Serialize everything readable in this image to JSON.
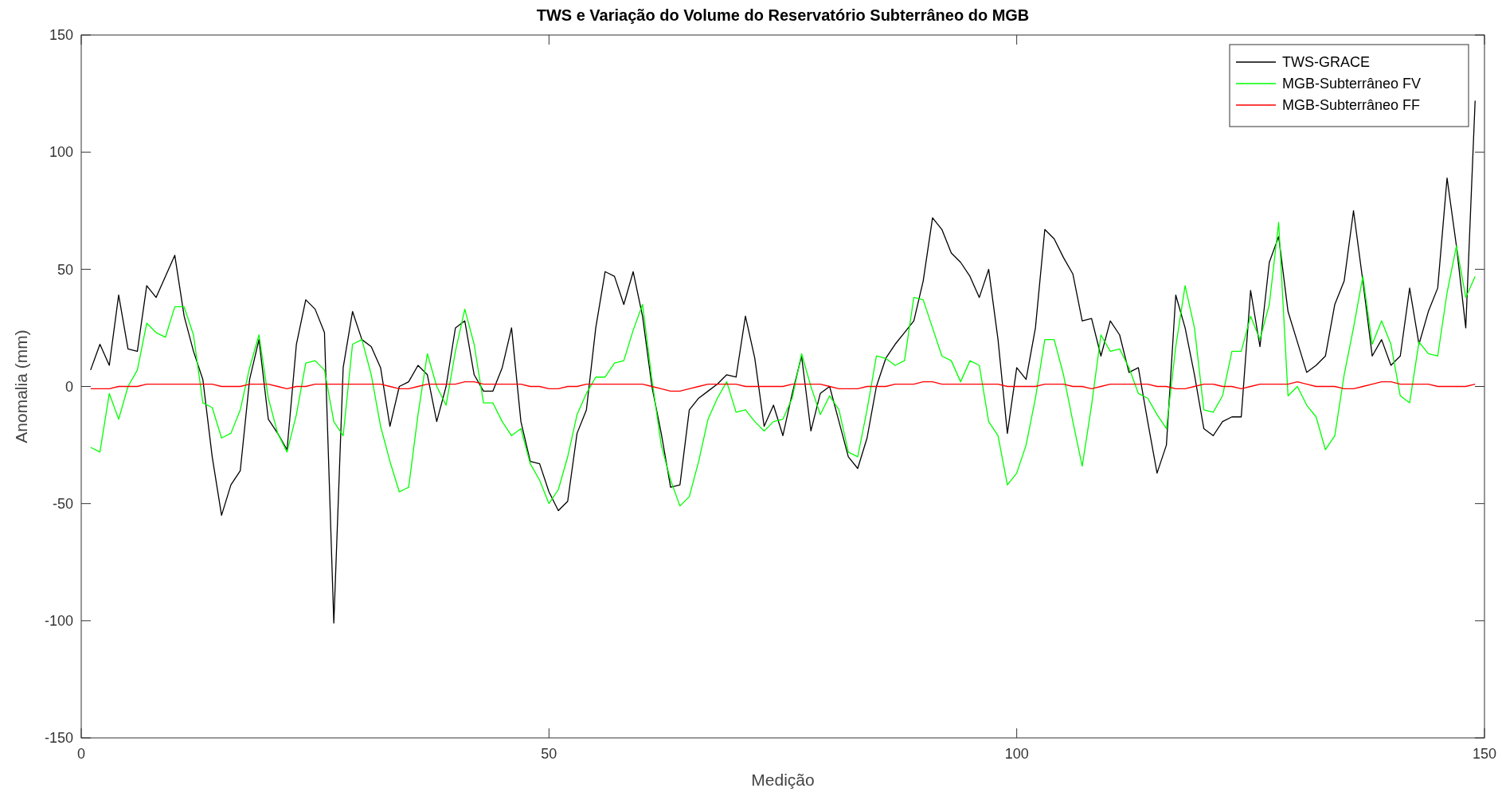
{
  "chart_data": {
    "type": "line",
    "title": "TWS e Variação do Volume do Reservatório Subterrâneo do MGB",
    "xlabel": "Medição",
    "ylabel": "Anomalia (mm)",
    "x": [
      1,
      2,
      3,
      4,
      5,
      6,
      7,
      8,
      9,
      10,
      11,
      12,
      13,
      14,
      15,
      16,
      17,
      18,
      19,
      20,
      21,
      22,
      23,
      24,
      25,
      26,
      27,
      28,
      29,
      30,
      31,
      32,
      33,
      34,
      35,
      36,
      37,
      38,
      39,
      40,
      41,
      42,
      43,
      44,
      45,
      46,
      47,
      48,
      49,
      50,
      51,
      52,
      53,
      54,
      55,
      56,
      57,
      58,
      59,
      60,
      61,
      62,
      63,
      64,
      65,
      66,
      67,
      68,
      69,
      70,
      71,
      72,
      73,
      74,
      75,
      76,
      77,
      78,
      79,
      80,
      81,
      82,
      83,
      84,
      85,
      86,
      87,
      88,
      89,
      90,
      91,
      92,
      93,
      94,
      95,
      96,
      97,
      98,
      99,
      100,
      101,
      102,
      103,
      104,
      105,
      106,
      107,
      108,
      109,
      110,
      111,
      112,
      113,
      114,
      115,
      116,
      117,
      118,
      119,
      120,
      121,
      122,
      123,
      124,
      125,
      126,
      127,
      128,
      129,
      130,
      131,
      132,
      133,
      134,
      135,
      136,
      137,
      138,
      139,
      140,
      141,
      142,
      143,
      144,
      145,
      146,
      147,
      148,
      149
    ],
    "series": [
      {
        "name": "TWS-GRACE",
        "color": "#000000",
        "values": [
          7,
          18,
          9,
          39,
          16,
          15,
          43,
          38,
          47,
          56,
          30,
          15,
          3,
          -30,
          -55,
          -42,
          -36,
          3,
          20,
          -14,
          -20,
          -27,
          18,
          37,
          33,
          23,
          -101,
          8,
          32,
          20,
          17,
          8,
          -17,
          0,
          2,
          9,
          5,
          -15,
          0,
          25,
          28,
          5,
          -2,
          -2,
          8,
          25,
          -15,
          -32,
          -33,
          -45,
          -53,
          -49,
          -20,
          -10,
          25,
          49,
          47,
          35,
          49,
          30,
          0,
          -20,
          -43,
          -42,
          -10,
          -5,
          -2,
          1,
          5,
          4,
          30,
          12,
          -17,
          -8,
          -21,
          -3,
          13,
          -19,
          -3,
          0,
          -15,
          -30,
          -35,
          -22,
          0,
          12,
          18,
          23,
          28,
          45,
          72,
          67,
          57,
          53,
          47,
          38,
          50,
          20,
          -20,
          8,
          3,
          25,
          67,
          63,
          55,
          48,
          28,
          29,
          13,
          28,
          22,
          6,
          8,
          -15,
          -37,
          -25,
          39,
          25,
          5,
          -18,
          -21,
          -15,
          -13,
          -13,
          41,
          17,
          53,
          64,
          32,
          19,
          6,
          9,
          13,
          35,
          45,
          75,
          45,
          13,
          20,
          9,
          13,
          42,
          18,
          32,
          42,
          89,
          60,
          25,
          122
        ]
      },
      {
        "name": "MGB-Subterrâneo FV",
        "color": "#00ff00",
        "values": [
          -26,
          -28,
          -3,
          -14,
          0,
          7,
          27,
          23,
          21,
          34,
          34,
          22,
          -7,
          -9,
          -22,
          -20,
          -10,
          8,
          22,
          -5,
          -20,
          -28,
          -12,
          10,
          11,
          7,
          -15,
          -21,
          18,
          20,
          5,
          -17,
          -32,
          -45,
          -43,
          -12,
          14,
          0,
          -8,
          15,
          33,
          18,
          -7,
          -7,
          -15,
          -21,
          -18,
          -33,
          -40,
          -50,
          -44,
          -30,
          -12,
          -3,
          4,
          4,
          10,
          11,
          24,
          35,
          3,
          -25,
          -40,
          -51,
          -47,
          -32,
          -14,
          -5,
          2,
          -11,
          -10,
          -15,
          -19,
          -15,
          -14,
          -5,
          14,
          0,
          -12,
          -4,
          -10,
          -28,
          -30,
          -10,
          13,
          12,
          9,
          11,
          38,
          37,
          25,
          13,
          11,
          2,
          11,
          9,
          -15,
          -21,
          -42,
          -37,
          -25,
          -5,
          20,
          20,
          5,
          -15,
          -34,
          -8,
          22,
          15,
          16,
          8,
          -3,
          -5,
          -12,
          -18,
          17,
          43,
          25,
          -10,
          -11,
          -4,
          15,
          15,
          30,
          20,
          35,
          70,
          -4,
          0,
          -8,
          -13,
          -27,
          -21,
          5,
          25,
          47,
          18,
          28,
          18,
          -4,
          -7,
          19,
          14,
          13,
          40,
          60,
          38,
          47
        ]
      },
      {
        "name": "MGB-Subterrâneo FF",
        "color": "#ff0000",
        "values": [
          -1,
          -1,
          -1,
          0,
          0,
          0,
          1,
          1,
          1,
          1,
          1,
          1,
          1,
          1,
          0,
          0,
          0,
          1,
          1,
          1,
          0,
          -1,
          0,
          0,
          1,
          1,
          1,
          1,
          1,
          1,
          1,
          1,
          0,
          -1,
          -1,
          0,
          1,
          1,
          1,
          1,
          2,
          2,
          1,
          1,
          1,
          1,
          1,
          0,
          0,
          -1,
          -1,
          0,
          0,
          1,
          1,
          1,
          1,
          1,
          1,
          1,
          0,
          -1,
          -2,
          -2,
          -1,
          0,
          1,
          1,
          1,
          1,
          0,
          0,
          0,
          0,
          0,
          1,
          1,
          1,
          1,
          0,
          -1,
          -1,
          -1,
          0,
          0,
          0,
          1,
          1,
          1,
          2,
          2,
          1,
          1,
          1,
          1,
          1,
          1,
          1,
          0,
          0,
          0,
          0,
          1,
          1,
          1,
          0,
          0,
          -1,
          0,
          1,
          1,
          1,
          1,
          1,
          0,
          0,
          -1,
          -1,
          0,
          1,
          1,
          0,
          0,
          -1,
          0,
          1,
          1,
          1,
          1,
          2,
          1,
          0,
          0,
          0,
          -1,
          -1,
          0,
          1,
          2,
          2,
          1,
          1,
          1,
          1,
          0,
          0,
          0,
          0,
          1
        ]
      }
    ],
    "xlim": [
      0,
      150
    ],
    "ylim": [
      -150,
      150
    ],
    "xticks": [
      0,
      50,
      100,
      150
    ],
    "yticks": [
      -150,
      -100,
      -50,
      0,
      50,
      100,
      150
    ],
    "legend": "top right",
    "grid": false,
    "line_style": "solid",
    "marker": "none"
  }
}
